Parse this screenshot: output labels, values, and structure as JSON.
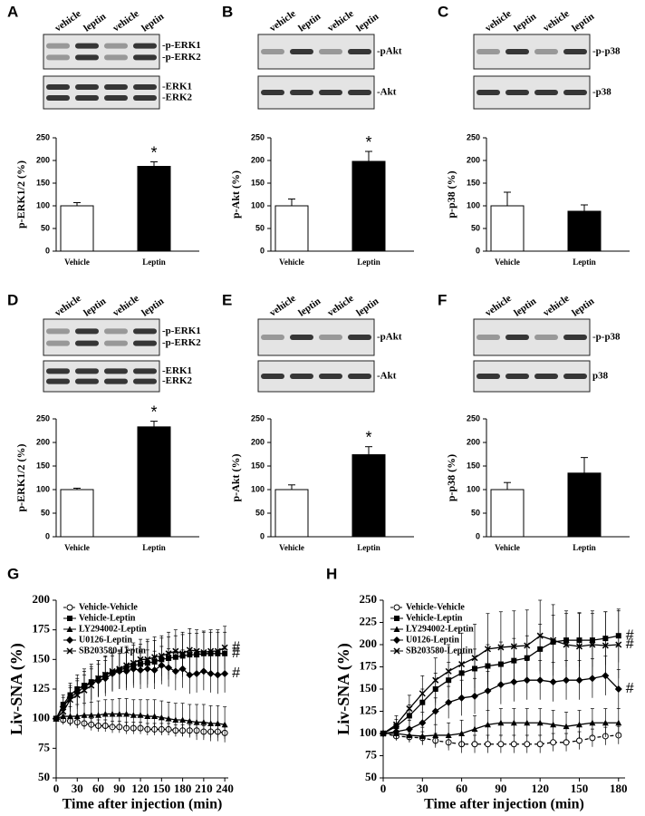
{
  "chart_data": [
    {
      "type": "bar",
      "panel": "A",
      "blot": {
        "lanes": [
          "vehicle",
          "leptin",
          "vehicle",
          "leptin"
        ],
        "bands": [
          [
            "-p-ERK1",
            "-p-ERK2"
          ],
          [
            "-ERK1",
            "-ERK2"
          ]
        ]
      },
      "ylabel": "p-ERK1/2 (%)",
      "categories": [
        "Vehicle",
        "Leptin"
      ],
      "values": [
        100,
        187
      ],
      "errors": [
        7,
        10
      ],
      "colors": [
        "#ffffff",
        "#000000"
      ],
      "ylim": [
        0,
        250
      ],
      "yticks": [
        0,
        50,
        100,
        150,
        200,
        250
      ],
      "annotation": "*"
    },
    {
      "type": "bar",
      "panel": "B",
      "blot": {
        "lanes": [
          "vehicle",
          "leptin",
          "vehicle",
          "leptin"
        ],
        "bands": [
          [
            "-pAkt"
          ],
          [
            "-Akt"
          ]
        ]
      },
      "ylabel": "p-Akt (%)",
      "categories": [
        "Vehicle",
        "Leptin"
      ],
      "values": [
        100,
        198
      ],
      "errors": [
        15,
        22
      ],
      "colors": [
        "#ffffff",
        "#000000"
      ],
      "ylim": [
        0,
        250
      ],
      "yticks": [
        0,
        50,
        100,
        150,
        200,
        250
      ],
      "annotation": "*"
    },
    {
      "type": "bar",
      "panel": "C",
      "blot": {
        "lanes": [
          "vehicle",
          "leptin",
          "vehicle",
          "leptin"
        ],
        "bands": [
          [
            "-p-p38"
          ],
          [
            "-p38"
          ]
        ]
      },
      "ylabel": "p-p38 (%)",
      "categories": [
        "Vehicle",
        "Leptin"
      ],
      "values": [
        100,
        88
      ],
      "errors": [
        30,
        14
      ],
      "colors": [
        "#ffffff",
        "#000000"
      ],
      "ylim": [
        0,
        250
      ],
      "yticks": [
        0,
        50,
        100,
        150,
        200,
        250
      ]
    },
    {
      "type": "bar",
      "panel": "D",
      "blot": {
        "lanes": [
          "vehicle",
          "leptin",
          "vehicle",
          "leptin"
        ],
        "bands": [
          [
            "-p-ERK1",
            "-p-ERK2"
          ],
          [
            "-ERK1",
            "-ERK2"
          ]
        ]
      },
      "ylabel": "p-ERK1/2 (%)",
      "categories": [
        "Vehicle",
        "Leptin"
      ],
      "values": [
        100,
        233
      ],
      "errors": [
        3,
        12
      ],
      "colors": [
        "#ffffff",
        "#000000"
      ],
      "ylim": [
        0,
        250
      ],
      "yticks": [
        0,
        50,
        100,
        150,
        200,
        250
      ],
      "annotation": "*"
    },
    {
      "type": "bar",
      "panel": "E",
      "blot": {
        "lanes": [
          "vehicle",
          "leptin",
          "vehicle",
          "leptin"
        ],
        "bands": [
          [
            "-pAkt"
          ],
          [
            "-Akt"
          ]
        ]
      },
      "ylabel": "p-Akt (%)",
      "categories": [
        "Vehicle",
        "Leptin"
      ],
      "values": [
        100,
        174
      ],
      "errors": [
        10,
        17
      ],
      "colors": [
        "#ffffff",
        "#000000"
      ],
      "ylim": [
        0,
        250
      ],
      "yticks": [
        0,
        50,
        100,
        150,
        200,
        250
      ],
      "annotation": "*"
    },
    {
      "type": "bar",
      "panel": "F",
      "blot": {
        "lanes": [
          "vehicle",
          "leptin",
          "vehicle",
          "leptin"
        ],
        "bands": [
          [
            "-p-p38"
          ],
          [
            "p38"
          ]
        ]
      },
      "ylabel": "p-p38 (%)",
      "categories": [
        "Vehicle",
        "Leptin"
      ],
      "values": [
        100,
        135
      ],
      "errors": [
        15,
        33
      ],
      "colors": [
        "#ffffff",
        "#000000"
      ],
      "ylim": [
        0,
        250
      ],
      "yticks": [
        0,
        50,
        100,
        150,
        200,
        250
      ]
    },
    {
      "type": "line",
      "panel": "G",
      "ylabel": "Liv-SNA (%)",
      "xlabel": "Time after injection (min)",
      "legend": "upper left",
      "hash_marks": [
        "#",
        "#",
        "#"
      ],
      "xlim": [
        0,
        245
      ],
      "xticks": [
        0,
        30,
        60,
        90,
        120,
        150,
        180,
        210,
        240
      ],
      "ylim": [
        50,
        200
      ],
      "yticks": [
        50,
        75,
        100,
        125,
        150,
        175,
        200
      ],
      "x": [
        0,
        10,
        20,
        30,
        40,
        50,
        60,
        70,
        80,
        90,
        100,
        110,
        120,
        130,
        140,
        150,
        160,
        170,
        180,
        190,
        200,
        210,
        220,
        230,
        240
      ],
      "series": [
        {
          "name": "Vehicle-Vehicle",
          "color": "#000000",
          "marker": "circle-open",
          "dashed": true,
          "values": [
            100,
            99,
            98,
            97,
            96,
            95,
            94,
            94,
            93,
            93,
            92,
            92,
            92,
            91,
            91,
            91,
            91,
            90,
            90,
            90,
            90,
            89,
            89,
            89,
            88
          ],
          "errors": [
            0,
            4,
            4,
            4,
            5,
            5,
            5,
            5,
            5,
            5,
            5,
            5,
            5,
            5,
            5,
            5,
            5,
            5,
            5,
            5,
            5,
            5,
            5,
            5,
            5
          ]
        },
        {
          "name": "Vehicle-Leptin",
          "color": "#000000",
          "marker": "square",
          "values": [
            100,
            112,
            120,
            125,
            128,
            131,
            134,
            137,
            139,
            141,
            143,
            145,
            146,
            147,
            148,
            150,
            151,
            152,
            153,
            154,
            154,
            155,
            155,
            155,
            155
          ],
          "errors": [
            0,
            8,
            10,
            12,
            14,
            15,
            15,
            16,
            16,
            16,
            17,
            17,
            17,
            18,
            18,
            18,
            18,
            18,
            18,
            18,
            18,
            18,
            18,
            18,
            18
          ]
        },
        {
          "name": "LY294002-Leptin",
          "color": "#000000",
          "marker": "triangle",
          "values": [
            100,
            102,
            102,
            102,
            103,
            103,
            103,
            104,
            104,
            104,
            104,
            103,
            103,
            102,
            102,
            101,
            100,
            99,
            99,
            98,
            97,
            97,
            96,
            96,
            95
          ],
          "errors": [
            0,
            6,
            8,
            10,
            10,
            11,
            12,
            12,
            12,
            13,
            13,
            13,
            13,
            14,
            14,
            14,
            14,
            14,
            14,
            14,
            15,
            15,
            15,
            15,
            15
          ]
        },
        {
          "name": "U0126-Leptin",
          "color": "#000000",
          "marker": "diamond",
          "values": [
            100,
            110,
            118,
            122,
            127,
            130,
            132,
            134,
            138,
            140,
            140,
            142,
            141,
            142,
            141,
            145,
            143,
            140,
            142,
            137,
            138,
            140,
            138,
            137,
            138
          ],
          "errors": [
            0,
            8,
            10,
            12,
            13,
            14,
            14,
            15,
            15,
            15,
            16,
            16,
            16,
            16,
            16,
            16,
            16,
            16,
            16,
            16,
            16,
            16,
            16,
            16,
            16
          ]
        },
        {
          "name": "SB203580-Leptin",
          "color": "#000000",
          "marker": "x",
          "values": [
            100,
            106,
            116,
            120,
            124,
            128,
            134,
            137,
            140,
            142,
            145,
            147,
            150,
            150,
            152,
            153,
            155,
            157,
            155,
            158,
            157,
            156,
            157,
            157,
            160
          ],
          "errors": [
            0,
            8,
            10,
            12,
            13,
            14,
            15,
            15,
            16,
            16,
            16,
            17,
            17,
            17,
            17,
            17,
            18,
            18,
            18,
            18,
            18,
            18,
            18,
            18,
            18
          ]
        }
      ]
    },
    {
      "type": "line",
      "panel": "H",
      "ylabel": "Liv-SNA (%)",
      "xlabel": "Time after injection (min)",
      "legend": "upper left",
      "hash_marks": [
        "#",
        "#",
        "#"
      ],
      "xlim": [
        0,
        185
      ],
      "xticks": [
        0,
        30,
        60,
        90,
        120,
        150,
        180
      ],
      "ylim": [
        50,
        250
      ],
      "yticks": [
        50,
        75,
        100,
        125,
        150,
        175,
        200,
        225,
        250
      ],
      "x": [
        0,
        10,
        20,
        30,
        40,
        50,
        60,
        70,
        80,
        90,
        100,
        110,
        120,
        130,
        140,
        150,
        160,
        170,
        180
      ],
      "series": [
        {
          "name": "Vehicle-Vehicle",
          "color": "#000000",
          "marker": "circle-open",
          "dashed": true,
          "values": [
            100,
            97,
            96,
            95,
            92,
            90,
            88,
            88,
            88,
            88,
            88,
            88,
            88,
            90,
            90,
            92,
            95,
            97,
            98
          ],
          "errors": [
            0,
            5,
            6,
            7,
            8,
            9,
            10,
            10,
            10,
            10,
            10,
            10,
            10,
            10,
            10,
            10,
            10,
            10,
            10
          ]
        },
        {
          "name": "Vehicle-Leptin",
          "color": "#000000",
          "marker": "square",
          "values": [
            100,
            108,
            120,
            135,
            150,
            160,
            168,
            173,
            176,
            178,
            182,
            185,
            195,
            203,
            205,
            205,
            205,
            207,
            210
          ],
          "errors": [
            0,
            8,
            12,
            15,
            18,
            20,
            22,
            22,
            24,
            25,
            25,
            25,
            28,
            30,
            30,
            30,
            30,
            30,
            30
          ]
        },
        {
          "name": "LY294002-Leptin",
          "color": "#000000",
          "marker": "triangle",
          "values": [
            100,
            100,
            98,
            97,
            98,
            98,
            100,
            105,
            110,
            112,
            112,
            112,
            112,
            110,
            108,
            110,
            112,
            112,
            112
          ],
          "errors": [
            0,
            6,
            8,
            10,
            12,
            14,
            15,
            15,
            16,
            16,
            16,
            16,
            16,
            16,
            16,
            16,
            16,
            16,
            16
          ]
        },
        {
          "name": "U0126-Leptin",
          "color": "#000000",
          "marker": "diamond",
          "values": [
            100,
            102,
            105,
            112,
            125,
            135,
            140,
            142,
            148,
            155,
            158,
            160,
            160,
            158,
            160,
            160,
            162,
            165,
            150
          ],
          "errors": [
            0,
            8,
            10,
            12,
            15,
            18,
            20,
            20,
            22,
            22,
            22,
            22,
            22,
            22,
            22,
            22,
            22,
            22,
            22
          ]
        },
        {
          "name": "SB203580-Leptin",
          "color": "#000000",
          "marker": "x",
          "values": [
            100,
            110,
            128,
            145,
            160,
            170,
            178,
            185,
            195,
            197,
            198,
            199,
            210,
            205,
            200,
            198,
            200,
            199,
            200
          ],
          "errors": [
            0,
            10,
            15,
            20,
            25,
            30,
            35,
            38,
            40,
            40,
            40,
            40,
            40,
            40,
            38,
            38,
            38,
            38,
            38
          ]
        }
      ]
    }
  ]
}
